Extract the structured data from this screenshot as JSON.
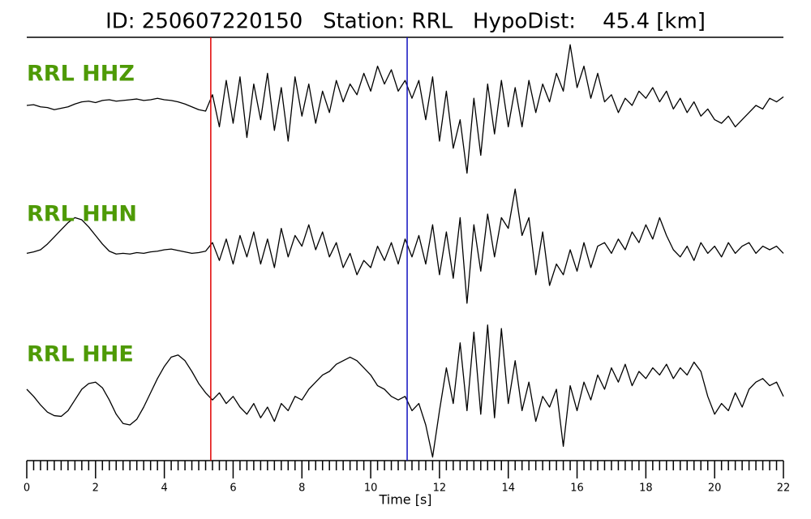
{
  "chart_data": {
    "type": "line",
    "title": "ID: 250607220150   Station: RRL   HypoDist:    45.4 [km]",
    "xlabel": "Time [s]",
    "xlim": [
      0,
      22
    ],
    "xticks": [
      0,
      2,
      4,
      6,
      8,
      10,
      12,
      14,
      16,
      18,
      20,
      22
    ],
    "xminorticks": [
      0.2,
      0.4,
      0.6,
      0.8,
      1,
      1.2,
      1.4,
      1.6,
      1.8,
      2.2,
      2.4,
      2.6,
      2.8,
      3,
      3.2,
      3.4,
      3.6,
      3.8,
      4.2,
      4.4,
      4.6,
      4.8,
      5,
      5.2,
      5.4,
      5.6,
      5.8,
      6.2,
      6.4,
      6.6,
      6.8,
      7,
      7.2,
      7.4,
      7.6,
      7.8,
      8.2,
      8.4,
      8.6,
      8.8,
      9,
      9.2,
      9.4,
      9.6,
      9.8,
      10.2,
      10.4,
      10.6,
      10.8,
      11,
      11.2,
      11.4,
      11.6,
      11.8,
      12.2,
      12.4,
      12.6,
      12.8,
      13,
      13.2,
      13.4,
      13.6,
      13.8,
      14.2,
      14.4,
      14.6,
      14.8,
      15,
      15.2,
      15.4,
      15.6,
      15.8,
      16.2,
      16.4,
      16.6,
      16.8,
      17,
      17.2,
      17.4,
      17.6,
      17.8,
      18.2,
      18.4,
      18.6,
      18.8,
      19,
      19.2,
      19.4,
      19.6,
      19.8,
      20.2,
      20.4,
      20.6,
      20.8,
      21,
      21.2,
      21.4,
      21.6,
      21.8
    ],
    "ylim": [
      -1,
      1
    ],
    "label_color": "#4e9a06",
    "markers": [
      {
        "x": 5.35,
        "color": "#e00000"
      },
      {
        "x": 11.06,
        "color": "#1010c0"
      }
    ],
    "x": [
      0,
      0.2,
      0.4,
      0.6,
      0.8,
      1,
      1.2,
      1.4,
      1.6,
      1.8,
      2,
      2.2,
      2.4,
      2.6,
      2.8,
      3,
      3.2,
      3.4,
      3.6,
      3.8,
      4,
      4.2,
      4.4,
      4.6,
      4.8,
      5,
      5.2,
      5.4,
      5.6,
      5.8,
      6,
      6.2,
      6.4,
      6.6,
      6.8,
      7,
      7.2,
      7.4,
      7.6,
      7.8,
      8,
      8.2,
      8.4,
      8.6,
      8.8,
      9,
      9.2,
      9.4,
      9.6,
      9.8,
      10,
      10.2,
      10.4,
      10.6,
      10.8,
      11,
      11.2,
      11.4,
      11.6,
      11.8,
      12,
      12.2,
      12.4,
      12.6,
      12.8,
      13,
      13.2,
      13.4,
      13.6,
      13.8,
      14,
      14.2,
      14.4,
      14.6,
      14.8,
      15,
      15.2,
      15.4,
      15.6,
      15.8,
      16,
      16.2,
      16.4,
      16.6,
      16.8,
      17,
      17.2,
      17.4,
      17.6,
      17.8,
      18,
      18.2,
      18.4,
      18.6,
      18.8,
      19,
      19.2,
      19.4,
      19.6,
      19.8,
      20,
      20.2,
      20.4,
      20.6,
      20.8,
      21,
      21.2,
      21.4,
      21.6,
      21.8,
      22
    ],
    "series": [
      {
        "name": "RRL HHZ",
        "color": "#000000",
        "values": [
          0.0,
          0.01,
          -0.02,
          -0.03,
          -0.06,
          -0.04,
          -0.02,
          0.02,
          0.05,
          0.06,
          0.04,
          0.07,
          0.08,
          0.06,
          0.07,
          0.08,
          0.09,
          0.07,
          0.08,
          0.1,
          0.08,
          0.07,
          0.05,
          0.02,
          -0.02,
          -0.06,
          -0.08,
          0.15,
          -0.3,
          0.35,
          -0.25,
          0.4,
          -0.45,
          0.3,
          -0.2,
          0.45,
          -0.35,
          0.25,
          -0.5,
          0.4,
          -0.15,
          0.3,
          -0.25,
          0.2,
          -0.1,
          0.35,
          0.05,
          0.3,
          0.15,
          0.45,
          0.2,
          0.55,
          0.3,
          0.5,
          0.2,
          0.35,
          0.1,
          0.35,
          -0.2,
          0.4,
          -0.5,
          0.2,
          -0.6,
          -0.2,
          -0.95,
          0.1,
          -0.7,
          0.3,
          -0.4,
          0.35,
          -0.3,
          0.25,
          -0.3,
          0.35,
          -0.1,
          0.3,
          0.05,
          0.45,
          0.2,
          0.85,
          0.25,
          0.55,
          0.1,
          0.45,
          0.05,
          0.15,
          -0.1,
          0.1,
          0.0,
          0.2,
          0.1,
          0.25,
          0.05,
          0.2,
          -0.05,
          0.1,
          -0.1,
          0.05,
          -0.15,
          -0.05,
          -0.2,
          -0.25,
          -0.15,
          -0.3,
          -0.2,
          -0.1,
          0.0,
          -0.05,
          0.1,
          0.05,
          0.12
        ]
      },
      {
        "name": "RRL HHN",
        "color": "#000000",
        "values": [
          -0.05,
          -0.03,
          0.0,
          0.08,
          0.18,
          0.28,
          0.38,
          0.45,
          0.42,
          0.32,
          0.2,
          0.08,
          -0.02,
          -0.06,
          -0.05,
          -0.06,
          -0.04,
          -0.05,
          -0.03,
          -0.02,
          0.0,
          0.01,
          -0.01,
          -0.03,
          -0.05,
          -0.04,
          -0.02,
          0.1,
          -0.15,
          0.15,
          -0.2,
          0.2,
          -0.1,
          0.25,
          -0.2,
          0.15,
          -0.25,
          0.3,
          -0.1,
          0.2,
          0.05,
          0.35,
          0.0,
          0.25,
          -0.1,
          0.1,
          -0.25,
          -0.05,
          -0.35,
          -0.15,
          -0.25,
          0.05,
          -0.15,
          0.1,
          -0.2,
          0.15,
          -0.1,
          0.2,
          -0.2,
          0.35,
          -0.35,
          0.25,
          -0.4,
          0.45,
          -0.75,
          0.35,
          -0.3,
          0.5,
          -0.1,
          0.45,
          0.3,
          0.85,
          0.2,
          0.45,
          -0.35,
          0.25,
          -0.5,
          -0.2,
          -0.35,
          0.0,
          -0.3,
          0.1,
          -0.25,
          0.05,
          0.1,
          -0.05,
          0.15,
          0.0,
          0.25,
          0.1,
          0.35,
          0.15,
          0.45,
          0.2,
          0.0,
          -0.1,
          0.05,
          -0.15,
          0.1,
          -0.05,
          0.05,
          -0.1,
          0.1,
          -0.05,
          0.05,
          0.1,
          -0.05,
          0.05,
          0.0,
          0.05,
          -0.05
        ]
      },
      {
        "name": "RRL HHE",
        "color": "#000000",
        "values": [
          0.0,
          -0.1,
          -0.22,
          -0.32,
          -0.37,
          -0.38,
          -0.3,
          -0.15,
          0.0,
          0.08,
          0.1,
          0.02,
          -0.15,
          -0.35,
          -0.48,
          -0.5,
          -0.42,
          -0.25,
          -0.05,
          0.15,
          0.32,
          0.45,
          0.48,
          0.4,
          0.25,
          0.08,
          -0.05,
          -0.15,
          -0.05,
          -0.2,
          -0.1,
          -0.25,
          -0.35,
          -0.2,
          -0.4,
          -0.25,
          -0.45,
          -0.2,
          -0.3,
          -0.1,
          -0.15,
          0.0,
          0.1,
          0.2,
          0.25,
          0.35,
          0.4,
          0.45,
          0.4,
          0.3,
          0.2,
          0.05,
          0.0,
          -0.1,
          -0.15,
          -0.1,
          -0.3,
          -0.2,
          -0.5,
          -0.95,
          -0.3,
          0.3,
          -0.2,
          0.65,
          -0.3,
          0.8,
          -0.35,
          0.9,
          -0.4,
          0.85,
          -0.2,
          0.4,
          -0.3,
          0.1,
          -0.45,
          -0.1,
          -0.25,
          0.0,
          -0.8,
          0.05,
          -0.3,
          0.1,
          -0.15,
          0.2,
          0.0,
          0.3,
          0.1,
          0.35,
          0.05,
          0.25,
          0.15,
          0.3,
          0.2,
          0.35,
          0.15,
          0.3,
          0.2,
          0.38,
          0.25,
          -0.1,
          -0.35,
          -0.2,
          -0.3,
          -0.05,
          -0.25,
          0.0,
          0.1,
          0.15,
          0.05,
          0.1,
          -0.1
        ]
      }
    ]
  }
}
